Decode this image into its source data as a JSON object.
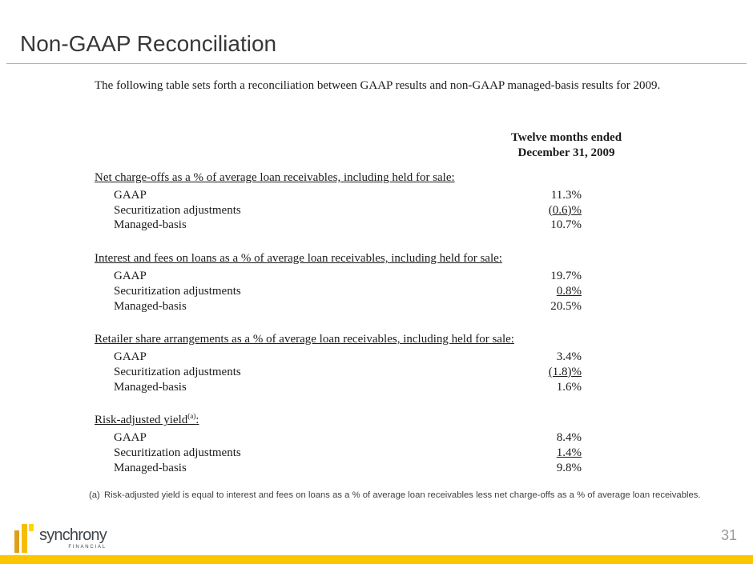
{
  "slide": {
    "title": "Non-GAAP Reconciliation",
    "intro": "The following table sets forth a reconciliation between GAAP results and non-GAAP managed-basis results for 2009.",
    "page_number": "31"
  },
  "table": {
    "period_header": {
      "line1": "Twelve months ended",
      "line2": "December 31, 2009"
    },
    "sections": [
      {
        "heading_main": "Net charge-offs as a % of average loan receivables, including held for sale:",
        "heading_sup": "",
        "heading_tail": "",
        "rows": [
          {
            "label": "GAAP",
            "value": "11.3%"
          },
          {
            "label": "Securitization adjustments",
            "value": "(0.6)%"
          },
          {
            "label": "Managed-basis",
            "value": "10.7%"
          }
        ]
      },
      {
        "heading_main": "Interest and fees on loans as a % of average loan receivables, including held for sale:",
        "heading_sup": "",
        "heading_tail": "",
        "rows": [
          {
            "label": "GAAP",
            "value": "19.7%"
          },
          {
            "label": "Securitization adjustments",
            "value": "0.8%"
          },
          {
            "label": "Managed-basis",
            "value": "20.5%"
          }
        ]
      },
      {
        "heading_main": "Retailer share arrangements as a % of average loan receivables, including held for sale:",
        "heading_sup": "",
        "heading_tail": "",
        "rows": [
          {
            "label": "GAAP",
            "value": "3.4%"
          },
          {
            "label": "Securitization adjustments",
            "value": "(1.8)%"
          },
          {
            "label": "Managed-basis",
            "value": "1.6%"
          }
        ]
      },
      {
        "heading_main": "Risk-adjusted yield",
        "heading_sup": "(a)",
        "heading_tail": ":",
        "rows": [
          {
            "label": "GAAP",
            "value": "8.4%"
          },
          {
            "label": "Securitization adjustments",
            "value": "1.4%"
          },
          {
            "label": "Managed-basis",
            "value": "9.8%"
          }
        ]
      }
    ]
  },
  "footnote": {
    "marker": "(a)",
    "text": "Risk-adjusted yield is equal to interest and fees on loans as a % of average loan receivables less net charge-offs as a % of average loan receivables."
  },
  "footer": {
    "logo_text": "synchrony",
    "logo_subtext": "FINANCIAL"
  },
  "colors": {
    "accent_gold": "#FBC600",
    "logo_bar_dark": "#DD9F1B",
    "logo_bar_mid": "#F6BE00",
    "logo_bar_light": "#FFD500",
    "logo_text": "#3F454B",
    "page_number": "#9A9A9A"
  }
}
